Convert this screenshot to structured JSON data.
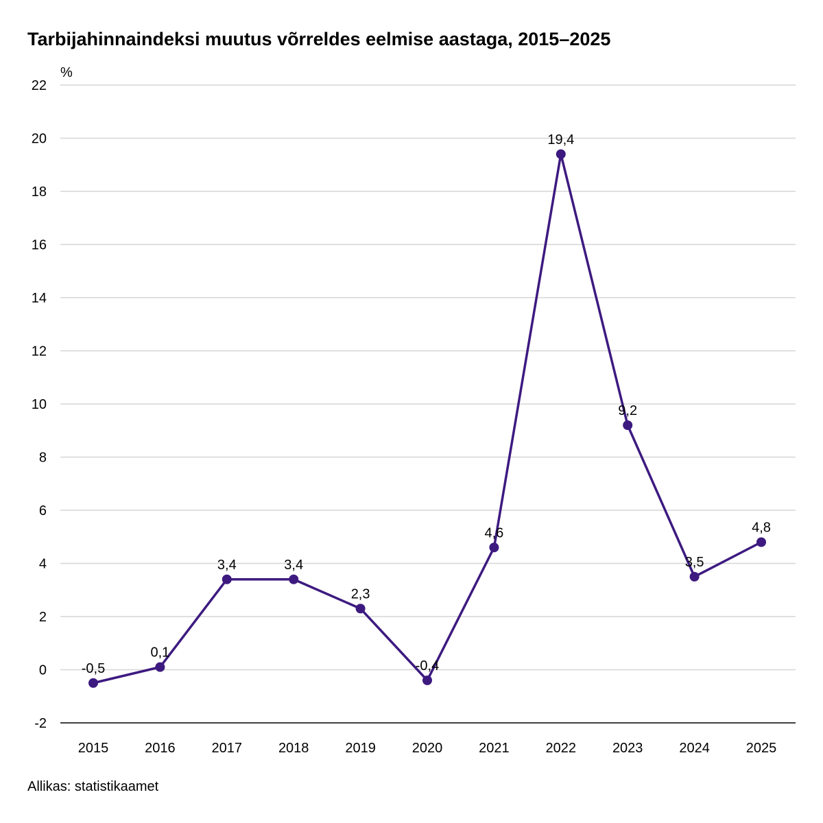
{
  "chart_data": {
    "type": "line",
    "title": "Tarbijahinnaindeksi muutus võrreldes eelmise aastaga, 2015–2025",
    "ylabel": "%",
    "xlabel": "",
    "categories": [
      "2015",
      "2016",
      "2017",
      "2018",
      "2019",
      "2020",
      "2021",
      "2022",
      "2023",
      "2024",
      "2025"
    ],
    "values": [
      -0.5,
      0.1,
      3.4,
      3.4,
      2.3,
      -0.4,
      4.6,
      19.4,
      9.2,
      3.5,
      4.8
    ],
    "data_labels": [
      "-0,5",
      "0,1",
      "3,4",
      "3,4",
      "2,3",
      "-0,4",
      "4,6",
      "19,4",
      "9,2",
      "3,5",
      "4,8"
    ],
    "ylim": [
      -2,
      22
    ],
    "yticks": [
      "-2",
      "0",
      "2",
      "4",
      "6",
      "8",
      "10",
      "12",
      "14",
      "16",
      "18",
      "20",
      "22"
    ],
    "grid": true,
    "color": "#3d1a80"
  },
  "source": "Allikas: statistikaamet"
}
